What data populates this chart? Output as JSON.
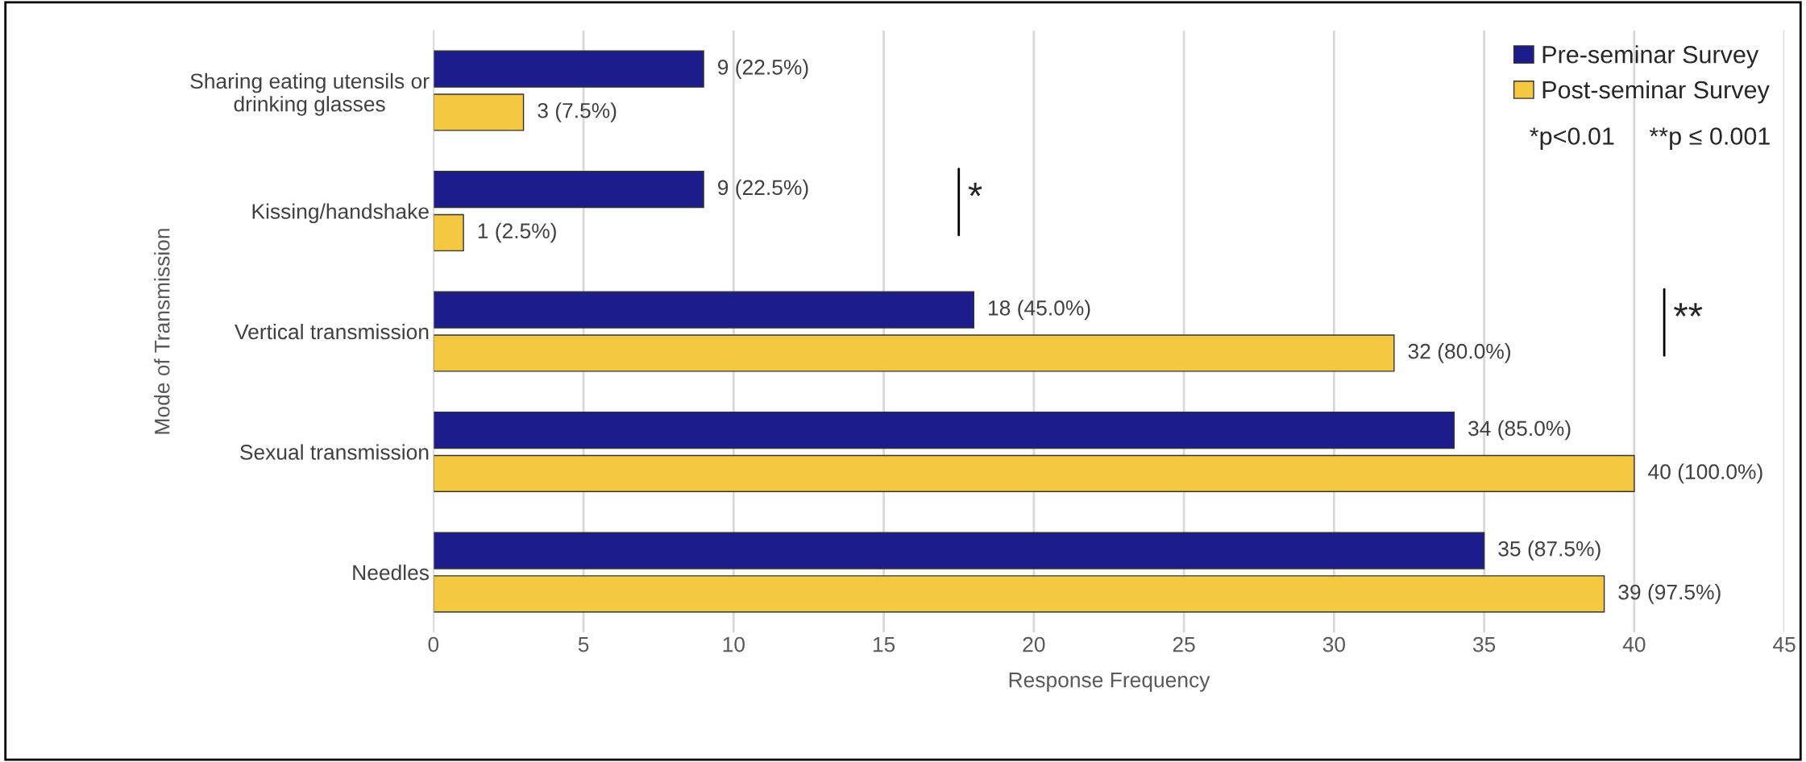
{
  "chart_data": {
    "type": "bar",
    "orientation": "horizontal",
    "xlabel": "Response Frequency",
    "ylabel": "Mode of Transmission",
    "categories": [
      "Sharing eating utensils or\ndrinking glasses",
      "Kissing/handshake",
      "Vertical transmission",
      "Sexual transmission",
      "Needles"
    ],
    "series": [
      {
        "name": "Pre-seminar Survey",
        "color": "#1c1c8c",
        "values": [
          9,
          9,
          18,
          34,
          35
        ],
        "value_labels": [
          "9 (22.5%)",
          "9 (22.5%)",
          "18 (45.0%)",
          "34 (85.0%)",
          "35 (87.5%)"
        ]
      },
      {
        "name": "Post-seminar Survey",
        "color": "#f5c842",
        "values": [
          3,
          1,
          32,
          40,
          39
        ],
        "value_labels": [
          "3 (7.5%)",
          "1 (2.5%)",
          "32 (80.0%)",
          "40 (100.0%)",
          "39 (97.5%)"
        ]
      }
    ],
    "xlim": [
      0,
      45
    ],
    "xticks": [
      0,
      5,
      10,
      15,
      20,
      25,
      30,
      35,
      40,
      45
    ],
    "grid": "x",
    "legend": "top right",
    "annotations": [
      "*p<0.01     **p ≤ 0.001",
      "*",
      "**"
    ]
  }
}
